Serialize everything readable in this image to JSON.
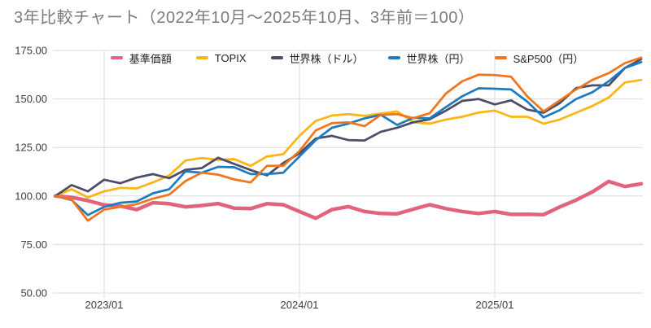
{
  "title": "3年比較チャート（2022年10月～2025年10月、3年前＝100）",
  "chart_data": {
    "type": "line",
    "title": "3年比較チャート（2022年10月～2025年10月、3年前＝100）",
    "xlabel": "",
    "ylabel": "",
    "grid": true,
    "legend_position": "top",
    "ylim": [
      50,
      175
    ],
    "yticks": [
      175,
      150,
      125,
      100,
      75,
      50
    ],
    "ytick_labels": [
      "175.00",
      "150.00",
      "125.00",
      "100.00",
      "75.00",
      "50.00"
    ],
    "xticks": [
      {
        "label": "2023/01",
        "index": 3
      },
      {
        "label": "2024/01",
        "index": 15
      },
      {
        "label": "2025/01",
        "index": 27
      }
    ],
    "x": [
      "2022/10",
      "2022/11",
      "2022/12",
      "2023/01",
      "2023/02",
      "2023/03",
      "2023/04",
      "2023/05",
      "2023/06",
      "2023/07",
      "2023/08",
      "2023/09",
      "2023/10",
      "2023/11",
      "2023/12",
      "2024/01",
      "2024/02",
      "2024/03",
      "2024/04",
      "2024/05",
      "2024/06",
      "2024/07",
      "2024/08",
      "2024/09",
      "2024/10",
      "2024/11",
      "2024/12",
      "2025/01",
      "2025/02",
      "2025/03",
      "2025/04",
      "2025/05",
      "2025/06",
      "2025/07",
      "2025/08",
      "2025/09",
      "2025/10"
    ],
    "series": [
      {
        "name": "基準価額",
        "color": "#e2647c",
        "values": [
          100,
          99.3,
          97.6,
          95.4,
          94.8,
          93.0,
          96.5,
          96.0,
          94.4,
          95.1,
          96.1,
          93.7,
          93.5,
          96.0,
          95.5,
          92.0,
          88.5,
          93.0,
          94.5,
          92.0,
          91.0,
          90.8,
          93.2,
          95.5,
          93.5,
          92.0,
          91.0,
          92.0,
          90.5,
          90.6,
          90.4,
          94.4,
          97.9,
          102.1,
          107.5,
          104.9,
          106.3
        ]
      },
      {
        "name": "TOPIX",
        "color": "#fcb515",
        "values": [
          100,
          103.5,
          99.3,
          102.4,
          104.2,
          103.9,
          107.0,
          110.6,
          118.3,
          119.6,
          118.6,
          119.0,
          115.5,
          120.4,
          121.5,
          131.0,
          138.7,
          141.5,
          142.2,
          141.3,
          142.5,
          143.6,
          138.0,
          137.3,
          139.4,
          140.8,
          143.0,
          144.0,
          140.8,
          140.8,
          137.3,
          139.4,
          142.9,
          146.4,
          150.7,
          158.5,
          159.8
        ]
      },
      {
        "name": "世界株（ドル）",
        "color": "#4e4d68",
        "values": [
          100,
          105.6,
          102.4,
          108.4,
          106.6,
          109.5,
          111.3,
          109.2,
          113.5,
          114.4,
          119.7,
          116.5,
          113.4,
          110.6,
          117.0,
          122.0,
          129.6,
          131.0,
          128.8,
          128.6,
          133.1,
          135.2,
          138.0,
          139.5,
          144.0,
          149.0,
          150.0,
          147.2,
          149.3,
          144.5,
          142.9,
          147.9,
          155.6,
          157.0,
          157.0,
          166.0,
          170.5
        ]
      },
      {
        "name": "世界株（円）",
        "color": "#1e7cbe",
        "values": [
          100,
          97.9,
          90.2,
          94.4,
          96.5,
          97.2,
          101.4,
          103.5,
          112.7,
          112.0,
          115.0,
          114.8,
          111.3,
          111.3,
          112.0,
          120.4,
          128.8,
          135.2,
          137.3,
          140.0,
          141.8,
          136.6,
          140.3,
          140.0,
          145.8,
          151.4,
          155.5,
          155.3,
          154.9,
          148.6,
          140.5,
          144.3,
          150.0,
          153.5,
          159.1,
          166.0,
          169.0
        ]
      },
      {
        "name": "S&P500（円）",
        "color": "#f0761e",
        "values": [
          100,
          98.2,
          87.3,
          93.0,
          94.4,
          95.8,
          98.6,
          100.7,
          107.7,
          112.0,
          111.0,
          108.5,
          107.0,
          115.5,
          115.5,
          123.2,
          133.8,
          137.6,
          138.0,
          136.0,
          141.8,
          142.2,
          140.1,
          142.6,
          152.8,
          159.1,
          162.5,
          162.3,
          161.5,
          151.3,
          143.6,
          149.3,
          154.9,
          159.8,
          163.3,
          168.5,
          171.3
        ]
      }
    ]
  }
}
